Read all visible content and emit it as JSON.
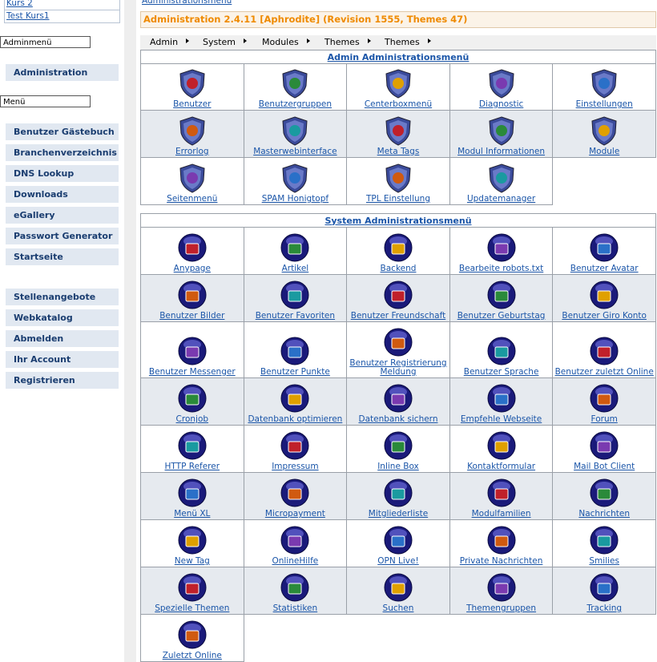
{
  "sidebar": {
    "top_links": [
      "Kurs 2",
      "Test Kurs1"
    ],
    "admin_menu": {
      "label": "Adminmenü",
      "items": [
        "Administration"
      ]
    },
    "menu": {
      "label": "Menü",
      "items": [
        "Benutzer Gästebuch",
        "Branchenverzeichnis",
        "DNS Lookup",
        "Downloads",
        "eGallery",
        "Passwort Generator",
        "Startseite"
      ],
      "items2": [
        "Stellenangebote",
        "Webkatalog",
        "Abmelden",
        "Ihr Account",
        "Registrieren"
      ]
    }
  },
  "main": {
    "breadcrumb": "Administrationsmenü",
    "title": "Administration 2.4.11 [Aphrodite] (Revision 1555, Themes 47)",
    "menubar": [
      "Admin",
      "System",
      "Modules",
      "Themes",
      "Themes"
    ],
    "sections": [
      {
        "title": "Admin Administrationsmenü",
        "items": [
          "Benutzer",
          "Benutzergruppen",
          "Centerboxmenü",
          "Diagnostic",
          "Einstellungen",
          "Errorlog",
          "Masterwebinterface",
          "Meta Tags",
          "Modul Informationen",
          "Module",
          "Seitenmenü",
          "SPAM Honigtopf",
          "TPL Einstellung",
          "Updatemanager"
        ]
      },
      {
        "title": "System Administrationsmenü",
        "items": [
          "Anypage",
          "Artikel",
          "Backend",
          "Bearbeite robots.txt",
          "Benutzer Avatar",
          "Benutzer Bilder",
          "Benutzer Favoriten",
          "Benutzer Freundschaft",
          "Benutzer Geburtstag",
          "Benutzer Giro Konto",
          "Benutzer Messenger",
          "Benutzer Punkte",
          "Benutzer Registrierung Meldung",
          "Benutzer Sprache",
          "Benutzer zuletzt Online",
          "Cronjob",
          "Datenbank optimieren",
          "Datenbank sichern",
          "Empfehle Webseite",
          "Forum",
          "HTTP Referer",
          "Impressum",
          "Inline Box",
          "Kontaktformular",
          "Mail Bot Client",
          "Menü XL",
          "Micropayment",
          "Mitgliederliste",
          "Modulfamilien",
          "Nachrichten",
          "New Tag",
          "OnlineHilfe",
          "OPN Live!",
          "Private Nachrichten",
          "Smilies",
          "Spezielle Themen",
          "Statistiken",
          "Suchen",
          "Themengruppen",
          "Tracking",
          "Zuletzt Online"
        ]
      }
    ]
  }
}
